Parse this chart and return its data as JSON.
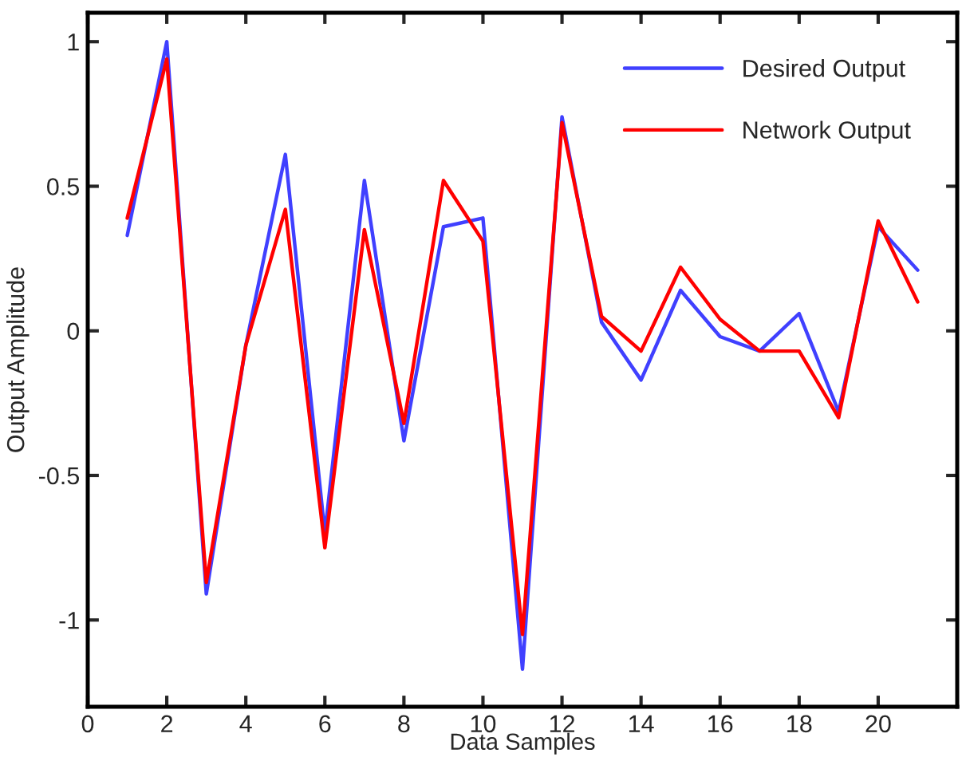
{
  "chart_data": {
    "type": "line",
    "xlabel": "Data Samples",
    "ylabel": "Output Amplitude",
    "x": [
      1,
      2,
      3,
      4,
      5,
      6,
      7,
      8,
      9,
      10,
      11,
      12,
      13,
      14,
      15,
      16,
      17,
      18,
      19,
      20,
      21
    ],
    "series": [
      {
        "name": "Desired Output",
        "color": "#4040ff",
        "values": [
          0.33,
          1.0,
          -0.91,
          -0.05,
          0.61,
          -0.7,
          0.52,
          -0.38,
          0.36,
          0.39,
          -1.17,
          0.74,
          0.03,
          -0.17,
          0.14,
          -0.02,
          -0.07,
          0.06,
          -0.28,
          0.36,
          0.21
        ]
      },
      {
        "name": "Network Output",
        "color": "#ff0000",
        "values": [
          0.39,
          0.94,
          -0.87,
          -0.05,
          0.42,
          -0.75,
          0.35,
          -0.32,
          0.52,
          0.31,
          -1.05,
          0.72,
          0.05,
          -0.07,
          0.22,
          0.04,
          -0.07,
          -0.07,
          -0.3,
          0.38,
          0.1
        ]
      }
    ],
    "xlim": [
      0,
      22
    ],
    "xticks": [
      0,
      2,
      4,
      6,
      8,
      10,
      12,
      14,
      16,
      18,
      20
    ],
    "ylim": [
      -1.3,
      1.1
    ],
    "yticks": [
      {
        "value": -1,
        "label": "-1"
      },
      {
        "value": -0.5,
        "label": "-0.5"
      },
      {
        "value": 0,
        "label": "0"
      },
      {
        "value": 0.5,
        "label": "0.5"
      },
      {
        "value": 1,
        "label": "1"
      }
    ],
    "legend": "top right",
    "grid": false,
    "marker": "none",
    "line_style": "solid"
  }
}
